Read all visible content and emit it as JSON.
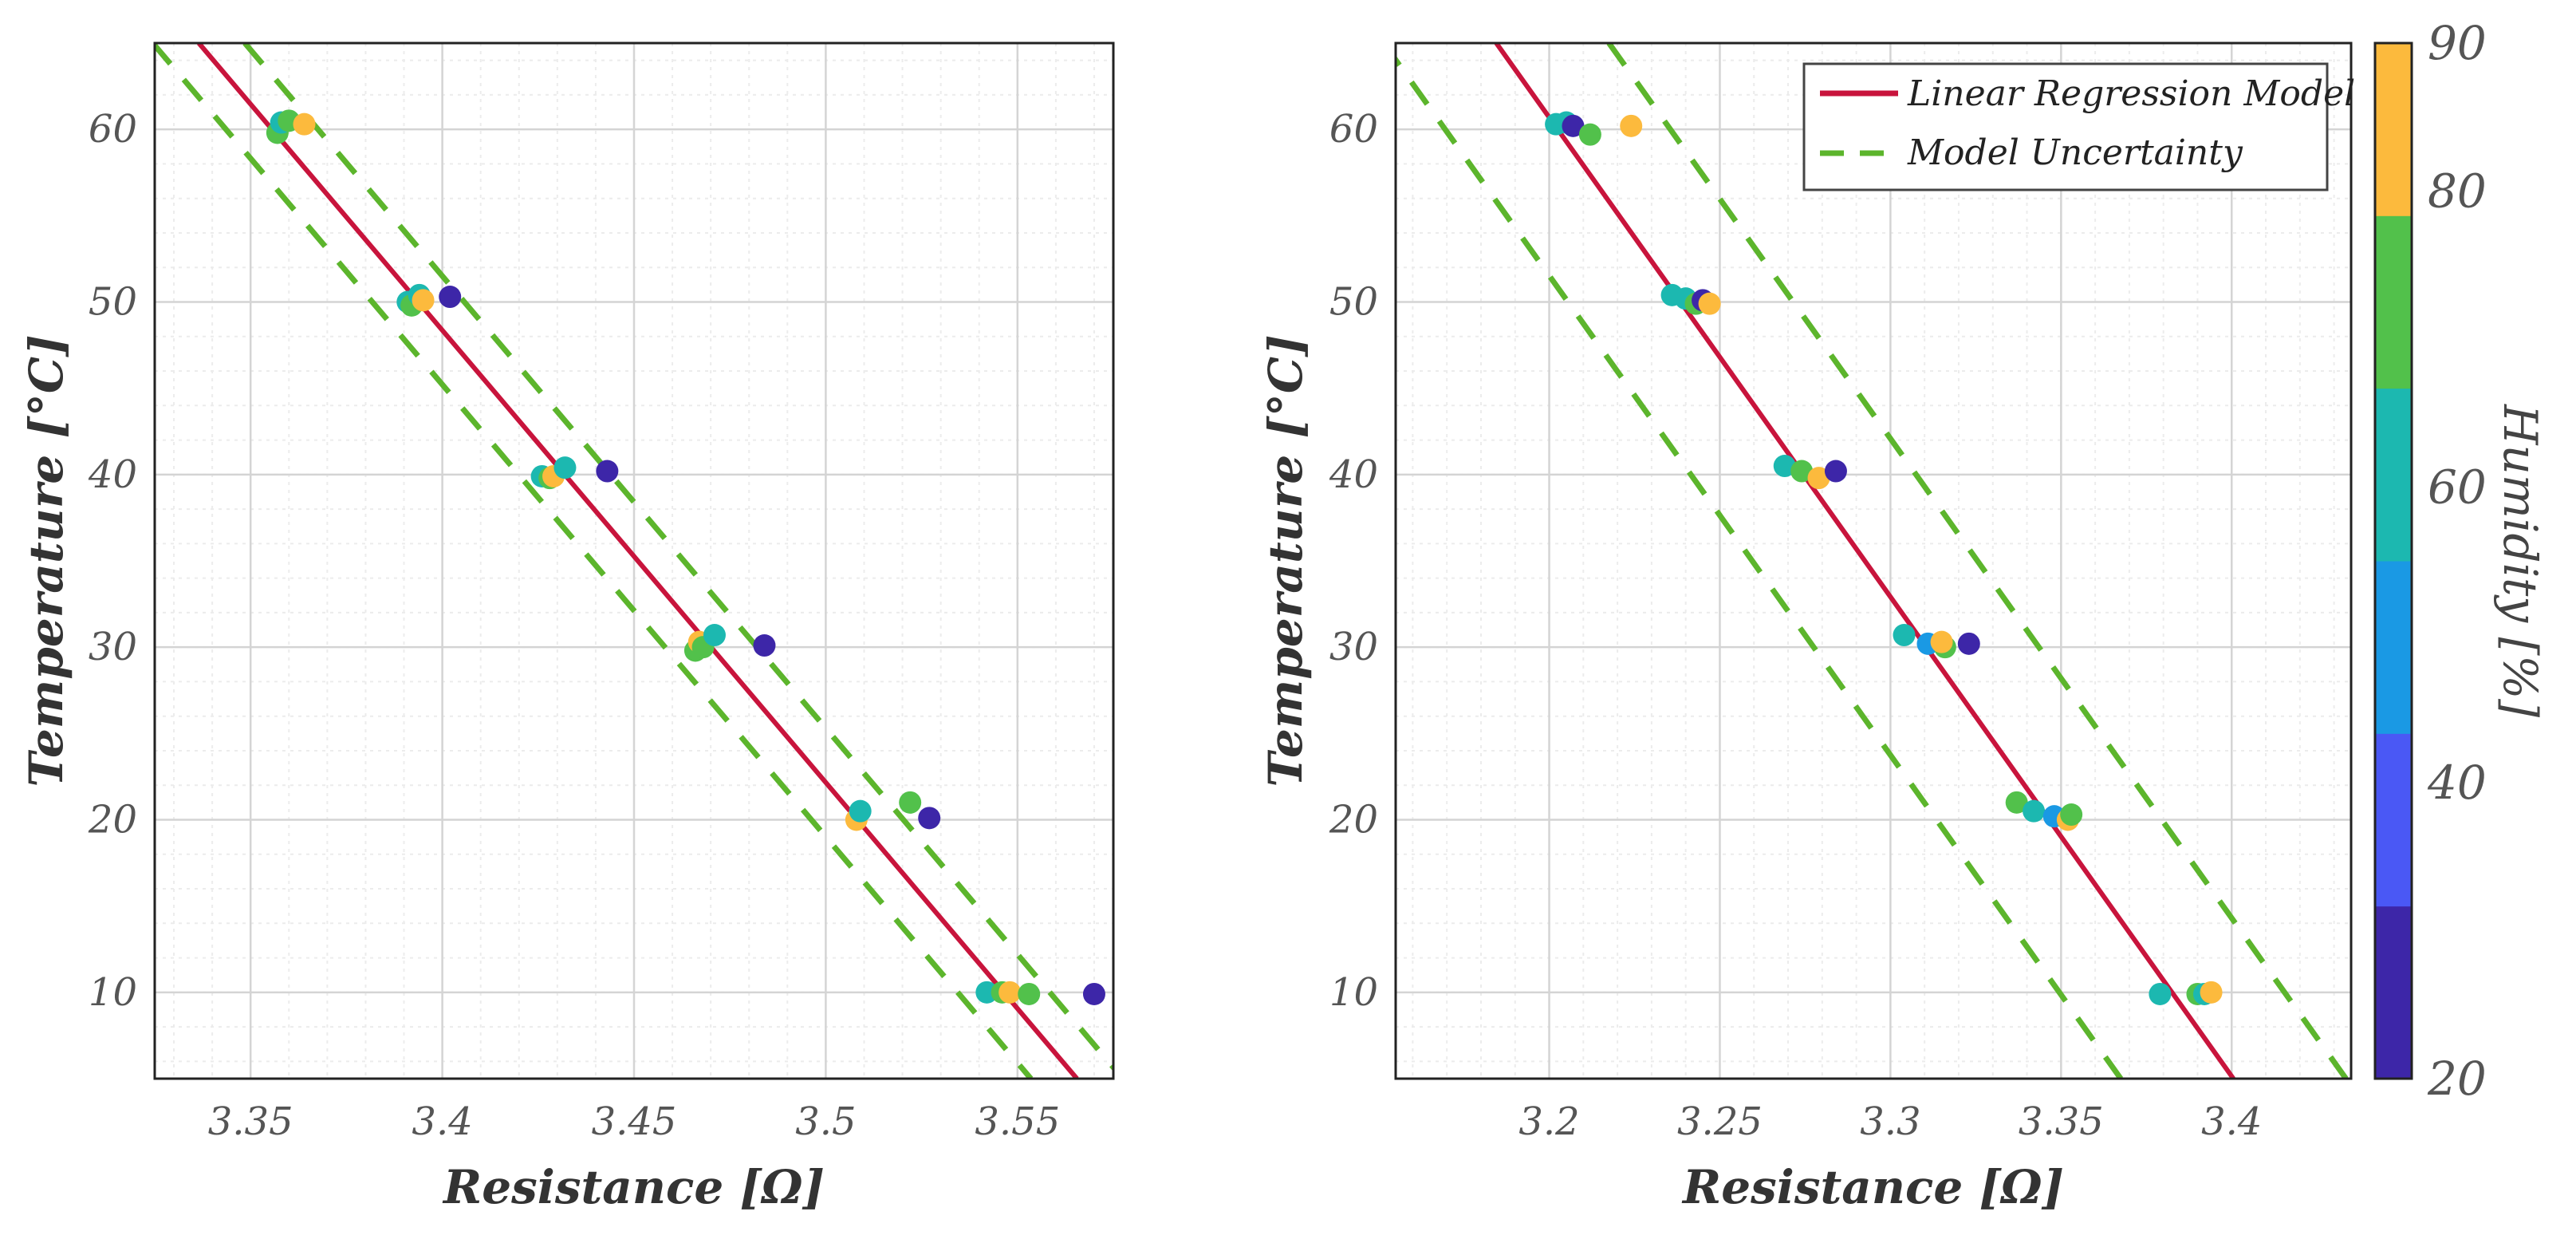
{
  "chart_data": [
    {
      "type": "scatter",
      "xlabel": "Resistance [Ω]",
      "ylabel": "Temperature [°C]",
      "xlim": [
        3.325,
        3.575
      ],
      "ylim": [
        5,
        65
      ],
      "xticks": [
        3.35,
        3.4,
        3.45,
        3.5,
        3.55
      ],
      "xtick_labels": [
        "3.35",
        "3.4",
        "3.45",
        "3.5",
        "3.55"
      ],
      "yticks": [
        10,
        20,
        30,
        40,
        50,
        60
      ],
      "ytick_labels": [
        "10",
        "20",
        "30",
        "40",
        "50",
        "60"
      ],
      "grid": true,
      "regression_line": [
        [
          3.3365,
          65
        ],
        [
          3.5655,
          5
        ]
      ],
      "uncertainty_upper": [
        [
          3.3485,
          65
        ],
        [
          3.5775,
          5
        ]
      ],
      "uncertainty_lower": [
        [
          3.3245,
          65
        ],
        [
          3.5535,
          5
        ]
      ],
      "points": [
        {
          "x": 3.357,
          "y": 59.8,
          "h": 77
        },
        {
          "x": 3.358,
          "y": 60.4,
          "h": 62
        },
        {
          "x": 3.36,
          "y": 60.5,
          "h": 70
        },
        {
          "x": 3.364,
          "y": 60.3,
          "h": 87
        },
        {
          "x": 3.391,
          "y": 50.0,
          "h": 58
        },
        {
          "x": 3.392,
          "y": 49.8,
          "h": 77
        },
        {
          "x": 3.394,
          "y": 50.4,
          "h": 62
        },
        {
          "x": 3.395,
          "y": 50.1,
          "h": 87
        },
        {
          "x": 3.402,
          "y": 50.3,
          "h": 25
        },
        {
          "x": 3.426,
          "y": 39.9,
          "h": 62
        },
        {
          "x": 3.428,
          "y": 39.8,
          "h": 77
        },
        {
          "x": 3.429,
          "y": 39.9,
          "h": 87
        },
        {
          "x": 3.432,
          "y": 40.4,
          "h": 62
        },
        {
          "x": 3.443,
          "y": 40.2,
          "h": 25
        },
        {
          "x": 3.466,
          "y": 29.8,
          "h": 77
        },
        {
          "x": 3.467,
          "y": 30.3,
          "h": 87
        },
        {
          "x": 3.468,
          "y": 30.0,
          "h": 70
        },
        {
          "x": 3.471,
          "y": 30.7,
          "h": 62
        },
        {
          "x": 3.484,
          "y": 30.1,
          "h": 25
        },
        {
          "x": 3.508,
          "y": 20.0,
          "h": 87
        },
        {
          "x": 3.509,
          "y": 20.5,
          "h": 62
        },
        {
          "x": 3.522,
          "y": 21.0,
          "h": 70
        },
        {
          "x": 3.527,
          "y": 20.1,
          "h": 25
        },
        {
          "x": 3.542,
          "y": 10.0,
          "h": 62
        },
        {
          "x": 3.546,
          "y": 10.0,
          "h": 70
        },
        {
          "x": 3.548,
          "y": 10.0,
          "h": 87
        },
        {
          "x": 3.553,
          "y": 9.9,
          "h": 70
        },
        {
          "x": 3.57,
          "y": 9.9,
          "h": 25
        }
      ]
    },
    {
      "type": "scatter",
      "xlabel": "Resistance [Ω]",
      "ylabel": "Temperature [°C]",
      "xlim": [
        3.155,
        3.435
      ],
      "ylim": [
        5,
        65
      ],
      "xticks": [
        3.2,
        3.25,
        3.3,
        3.35,
        3.4
      ],
      "xtick_labels": [
        "3.2",
        "3.25",
        "3.3",
        "3.35",
        "3.4"
      ],
      "yticks": [
        10,
        20,
        30,
        40,
        50,
        60
      ],
      "ytick_labels": [
        "10",
        "20",
        "30",
        "40",
        "50",
        "60"
      ],
      "grid": true,
      "regression_line": [
        [
          3.1845,
          65
        ],
        [
          3.4005,
          5
        ]
      ],
      "uncertainty_upper": [
        [
          3.2175,
          65
        ],
        [
          3.4335,
          5
        ]
      ],
      "uncertainty_lower": [
        [
          3.1515,
          65
        ],
        [
          3.3675,
          5
        ]
      ],
      "points": [
        {
          "x": 3.202,
          "y": 60.3,
          "h": 62
        },
        {
          "x": 3.205,
          "y": 60.4,
          "h": 62
        },
        {
          "x": 3.207,
          "y": 60.2,
          "h": 25
        },
        {
          "x": 3.212,
          "y": 59.7,
          "h": 77
        },
        {
          "x": 3.224,
          "y": 60.2,
          "h": 87
        },
        {
          "x": 3.236,
          "y": 50.4,
          "h": 62
        },
        {
          "x": 3.24,
          "y": 50.2,
          "h": 58
        },
        {
          "x": 3.243,
          "y": 49.9,
          "h": 77
        },
        {
          "x": 3.245,
          "y": 50.1,
          "h": 25
        },
        {
          "x": 3.247,
          "y": 49.9,
          "h": 87
        },
        {
          "x": 3.269,
          "y": 40.5,
          "h": 62
        },
        {
          "x": 3.274,
          "y": 40.2,
          "h": 70
        },
        {
          "x": 3.279,
          "y": 39.8,
          "h": 87
        },
        {
          "x": 3.284,
          "y": 40.2,
          "h": 25
        },
        {
          "x": 3.304,
          "y": 30.7,
          "h": 62
        },
        {
          "x": 3.311,
          "y": 30.2,
          "h": 45
        },
        {
          "x": 3.316,
          "y": 30.0,
          "h": 77
        },
        {
          "x": 3.315,
          "y": 30.3,
          "h": 87
        },
        {
          "x": 3.323,
          "y": 30.2,
          "h": 25
        },
        {
          "x": 3.337,
          "y": 21.0,
          "h": 70
        },
        {
          "x": 3.342,
          "y": 20.5,
          "h": 62
        },
        {
          "x": 3.348,
          "y": 20.2,
          "h": 45
        },
        {
          "x": 3.352,
          "y": 20.0,
          "h": 87
        },
        {
          "x": 3.353,
          "y": 20.3,
          "h": 77
        },
        {
          "x": 3.379,
          "y": 9.9,
          "h": 62
        },
        {
          "x": 3.39,
          "y": 9.9,
          "h": 70
        },
        {
          "x": 3.392,
          "y": 9.9,
          "h": 62
        },
        {
          "x": 3.394,
          "y": 10.0,
          "h": 87
        }
      ]
    }
  ],
  "legend": {
    "position": "top-right",
    "entries": [
      {
        "label": "Linear Regression Model",
        "style": "solid",
        "color": "#c8143c"
      },
      {
        "label": "Model Uncertainty",
        "style": "dashed",
        "color": "#5cb52c"
      }
    ]
  },
  "colorbar": {
    "label": "Humidity [%]",
    "range": [
      20,
      90
    ],
    "ticks": [
      20,
      40,
      60,
      80,
      90
    ],
    "tick_labels": [
      "20",
      "40",
      "60",
      "80",
      "90"
    ],
    "colors": [
      "#3d26a8",
      "#4a58f5",
      "#1a99e4",
      "#1cb8b0",
      "#52c14b",
      "#fcba3d"
    ]
  },
  "colors": {
    "regression": "#c8143c",
    "uncertainty": "#5cb52c",
    "grid_major": "#d4d4d4",
    "grid_minor": "#ececec",
    "axis": "#222222"
  }
}
